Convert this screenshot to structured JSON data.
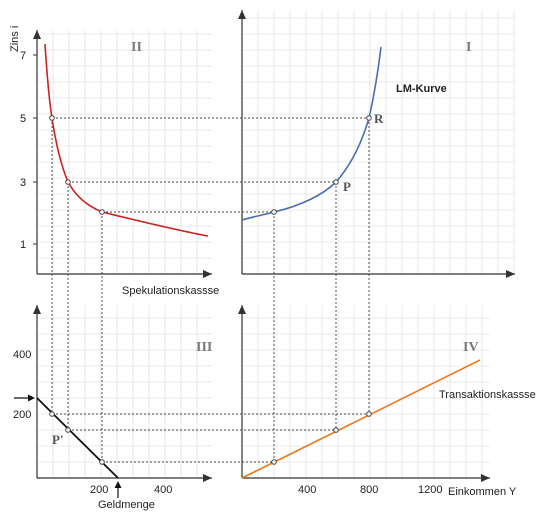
{
  "axes": {
    "y_label": "Zins i",
    "x_label": "Einkommen Y",
    "money_label": "Geldmenge",
    "interest_ticks": [
      "7",
      "5",
      "3",
      "1"
    ],
    "money_ticks_vertical": [
      "400",
      "200"
    ],
    "money_ticks_horizontal": [
      "200",
      "400"
    ],
    "income_ticks": [
      "400",
      "800",
      "1200"
    ]
  },
  "quadrants": {
    "q1": "I",
    "q2": "II",
    "q3": "III",
    "q4": "IV"
  },
  "curves": {
    "lm": "LM-Kurve",
    "speculation": "Spekulationskassse",
    "transaction": "Transaktionskassse"
  },
  "points": {
    "p": "P",
    "r": "R",
    "p_prime": "P'"
  },
  "colors": {
    "lm": "#4a6fb0",
    "speculation": "#cc2222",
    "transaction": "#f07818",
    "lm_label": "#1f5fa8",
    "money_line": "#111111",
    "grid": "#d8d8d8"
  }
}
